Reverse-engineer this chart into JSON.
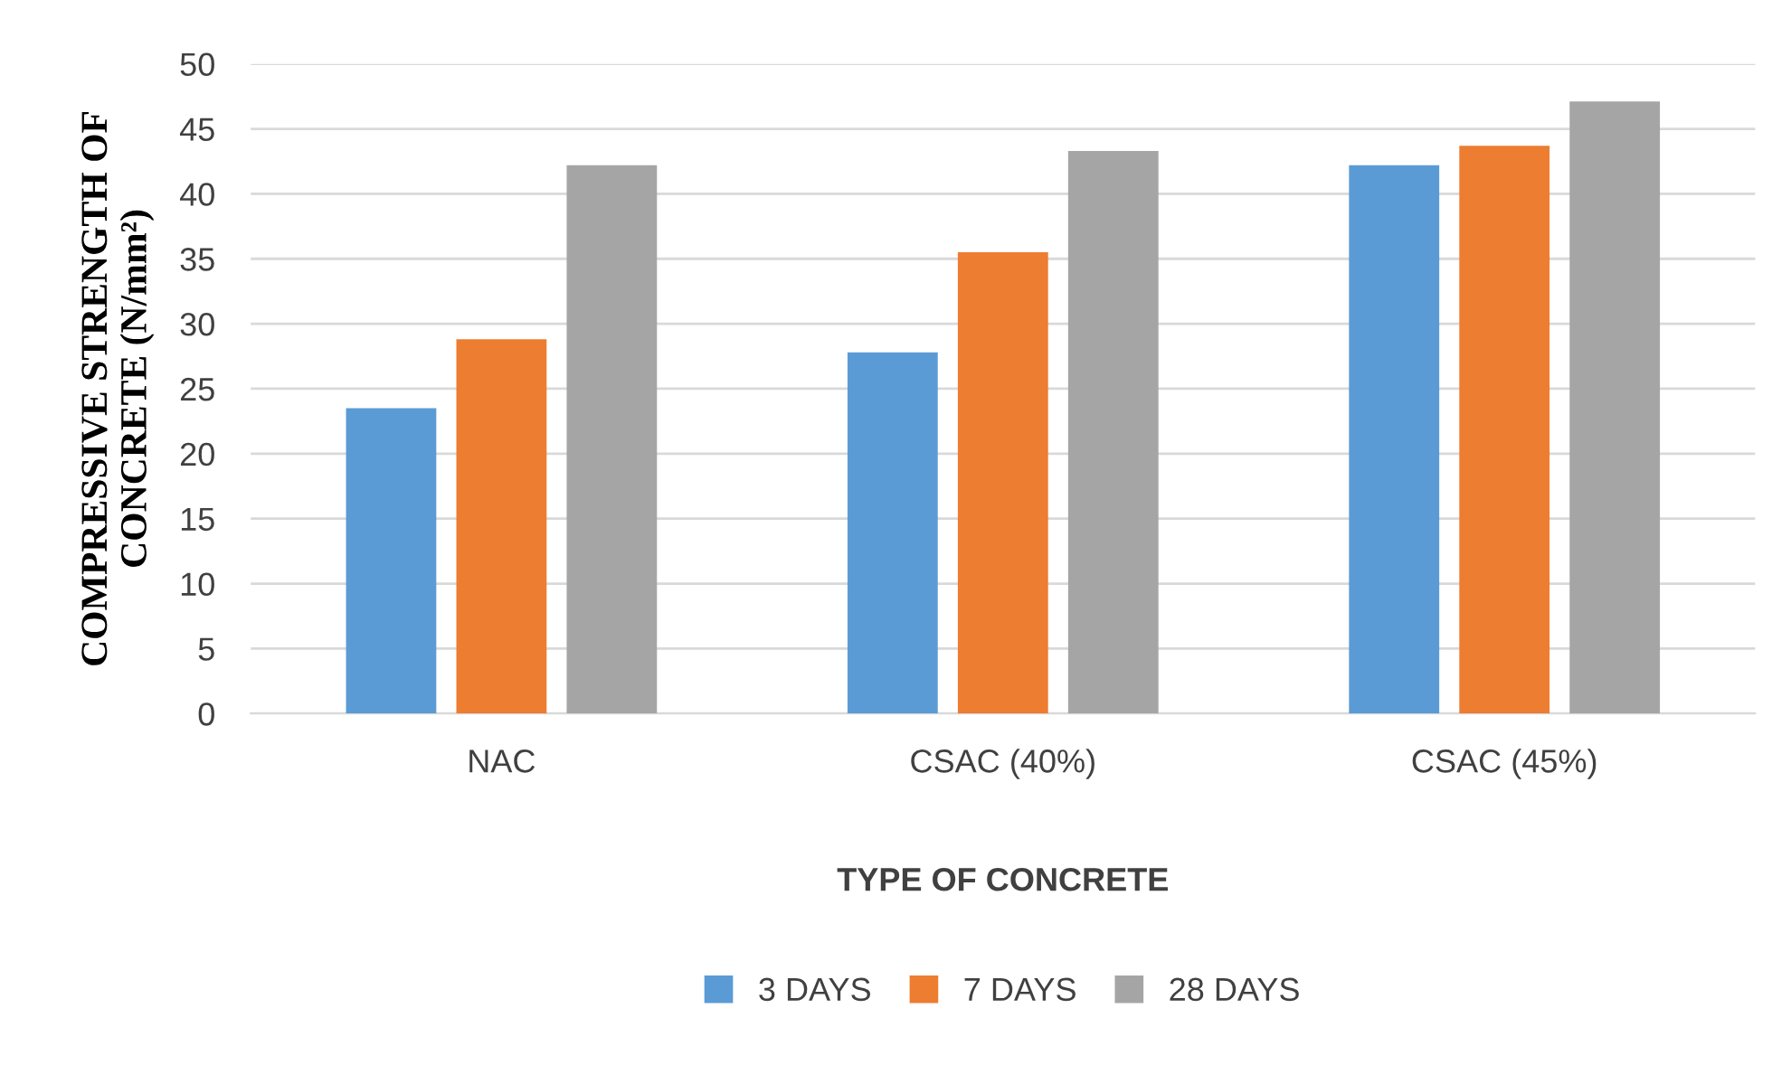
{
  "chart_data": {
    "type": "bar",
    "xlabel": "TYPE OF CONCRETE",
    "ylabel": "COMPRESSIVE STRENGTH OF\nCONCRETE (N/mm²)",
    "categories": [
      "NAC",
      "CSAC (40%)",
      "CSAC (45%)"
    ],
    "series": [
      {
        "name": "3 DAYS",
        "color": "#5b9bd5",
        "values": [
          23.5,
          27.8,
          42.2
        ]
      },
      {
        "name": "7 DAYS",
        "color": "#ed7d31",
        "values": [
          28.8,
          35.5,
          43.7
        ]
      },
      {
        "name": "28 DAYS",
        "color": "#a5a5a5",
        "values": [
          42.2,
          43.3,
          47.1
        ]
      }
    ],
    "ylim": [
      0,
      50
    ],
    "yticks": [
      0,
      5,
      10,
      15,
      20,
      25,
      30,
      35,
      40,
      45,
      50
    ],
    "grid": "y",
    "legend": "bottom"
  }
}
